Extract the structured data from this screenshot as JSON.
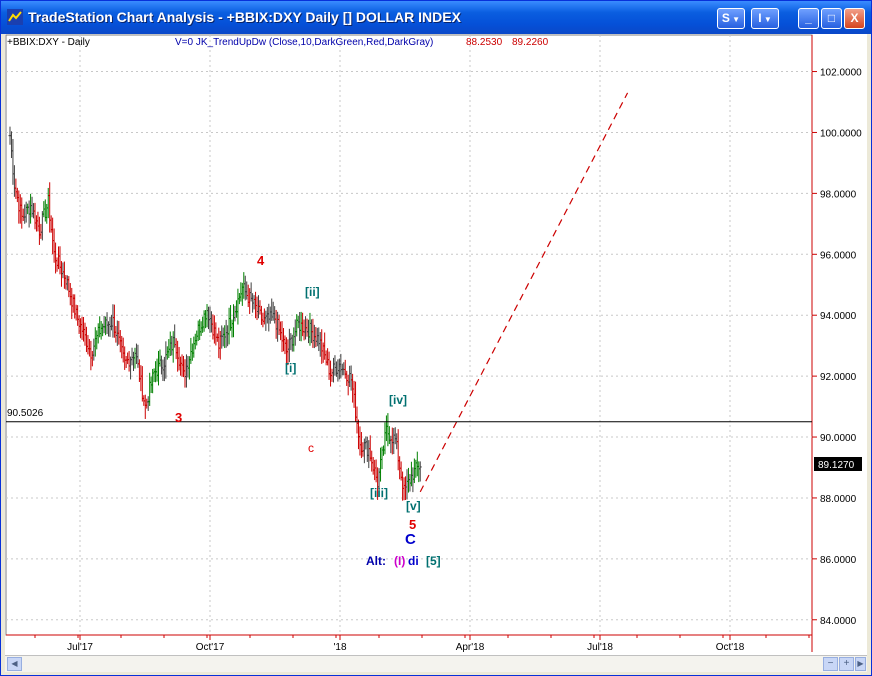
{
  "window": {
    "title": "TradeStation Chart Analysis - +BBIX:DXY Daily [] DOLLAR INDEX",
    "btn_style": "S",
    "btn_indicator": "I",
    "btn_minimize": "_",
    "btn_maximize": "□",
    "btn_close": "X"
  },
  "chart": {
    "symbol_label": "+BBIX:DXY - Daily",
    "indicator_label": "V=0  JK_TrendUpDw (Close,10,DarkGreen,Red,DarkGray)",
    "indicator_value1": "88.2530",
    "indicator_value2": "89.2260",
    "hline_label": "90.5026",
    "last_price": "89.1270",
    "price_ticks": [
      "102.0000",
      "100.0000",
      "98.0000",
      "96.0000",
      "94.0000",
      "92.0000",
      "90.0000",
      "88.0000",
      "86.0000",
      "84.0000"
    ],
    "date_ticks": [
      "Jul'17",
      "Oct'17",
      "'18",
      "Apr'18",
      "Jul'18",
      "Oct'18"
    ],
    "wave_labels": {
      "w3": "3",
      "w4": "4",
      "w5": "5",
      "i": "[i]",
      "ii": "[ii]",
      "iii": "[iii]",
      "iv": "[iv]",
      "v": "[v]",
      "c_small": "c",
      "C": "C",
      "alt": "Alt:",
      "alt_i": "(I)",
      "alt_di": "di",
      "alt_5": "[5]"
    },
    "colors": {
      "up": "#008000",
      "down": "#cc0000",
      "neutral": "#404040",
      "wave_red": "#e00000",
      "wave_teal": "#007070",
      "wave_blue": "#0000cc",
      "wave_magenta": "#cc00cc",
      "axis": "#cc0000",
      "projection": "#cc0000"
    }
  },
  "chart_data": {
    "type": "bar",
    "title": "+BBIX:DXY - Daily",
    "ylim": [
      83.5,
      103.2
    ],
    "yticks": [
      102,
      100,
      98,
      96,
      94,
      92,
      90,
      88,
      86,
      84
    ],
    "x_ticks": [
      "Jul'17",
      "Oct'17",
      "'18",
      "Apr'18",
      "Jul'18",
      "Oct'18"
    ],
    "anchors": [
      [
        0,
        99.9
      ],
      [
        3,
        98.3
      ],
      [
        8,
        97.2
      ],
      [
        14,
        97.6
      ],
      [
        20,
        96.8
      ],
      [
        26,
        97.7
      ],
      [
        30,
        96.0
      ],
      [
        38,
        95.2
      ],
      [
        45,
        94.0
      ],
      [
        55,
        92.8
      ],
      [
        62,
        93.6
      ],
      [
        70,
        93.8
      ],
      [
        78,
        92.4
      ],
      [
        85,
        92.8
      ],
      [
        92,
        91.0
      ],
      [
        98,
        92.1
      ],
      [
        105,
        92.5
      ],
      [
        112,
        93.2
      ],
      [
        118,
        92.0
      ],
      [
        126,
        93.3
      ],
      [
        134,
        94.2
      ],
      [
        142,
        93.0
      ],
      [
        150,
        93.8
      ],
      [
        158,
        94.9
      ],
      [
        165,
        94.4
      ],
      [
        172,
        93.8
      ],
      [
        180,
        93.9
      ],
      [
        188,
        92.8
      ],
      [
        196,
        93.7
      ],
      [
        204,
        93.5
      ],
      [
        210,
        93.2
      ],
      [
        218,
        92.1
      ],
      [
        224,
        92.4
      ],
      [
        232,
        91.9
      ],
      [
        238,
        89.8
      ],
      [
        244,
        89.6
      ],
      [
        250,
        88.5
      ],
      [
        256,
        90.2
      ],
      [
        262,
        89.9
      ],
      [
        268,
        88.2
      ],
      [
        274,
        88.8
      ],
      [
        279,
        89.1
      ]
    ],
    "projection": {
      "from": [
        279,
        88.2
      ],
      "to": [
        420,
        101.3
      ]
    },
    "horizontal_line": 90.5026,
    "last_price": 89.127
  }
}
